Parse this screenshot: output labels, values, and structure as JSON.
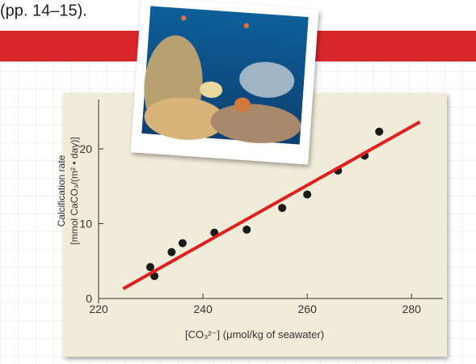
{
  "page_text": "(pp. 14–15).",
  "chart_data": {
    "type": "scatter",
    "x_label": "[CO₃²⁻] (μmol/kg of seawater)",
    "y_label": [
      "Calcification rate",
      "[mmol CaCO₃/(m² • day)]"
    ],
    "xlim": [
      220,
      286
    ],
    "ylim": [
      0,
      26.6
    ],
    "xticks": [
      220,
      240,
      260,
      280
    ],
    "yticks": [
      0,
      10,
      20
    ],
    "series": [
      {
        "color": "#1a1a1a",
        "style": "points",
        "x": [
          229.9,
          230.7,
          234,
          236.1,
          242.2,
          248.4,
          255.2,
          260,
          265.9,
          271,
          273.8
        ],
        "values": [
          4.2,
          3.0,
          6.2,
          7.4,
          8.8,
          9.2,
          12.1,
          13.9,
          17.1,
          19.1,
          22.3
        ]
      },
      {
        "color": "#e0201e",
        "style": "line",
        "x": [
          224.7,
          281.6
        ],
        "values": [
          1.3,
          23.6
        ]
      }
    ]
  }
}
